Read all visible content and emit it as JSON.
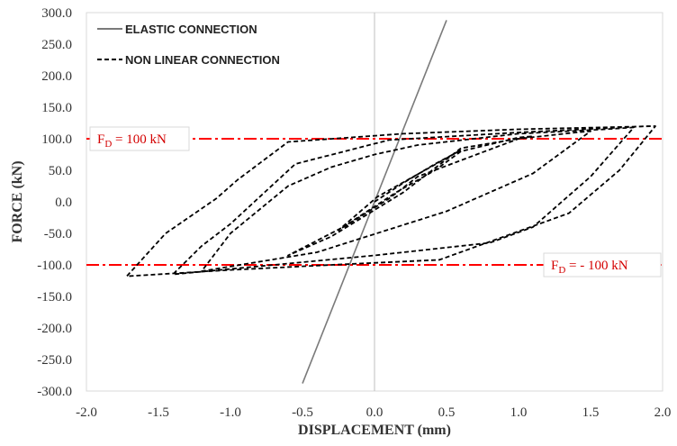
{
  "chart_data": {
    "type": "line",
    "title": "",
    "xlabel": "DISPLACEMENT (mm)",
    "ylabel": "FORCE (kN)",
    "xlim": [
      -2.0,
      2.0
    ],
    "ylim": [
      -300.0,
      300.0
    ],
    "x_ticks": [
      "-2.0",
      "-1.5",
      "-1.0",
      "-0.5",
      "0.0",
      "0.5",
      "1.0",
      "1.5",
      "2.0"
    ],
    "y_ticks": [
      "-300.0",
      "-250.0",
      "-200.0",
      "-150.0",
      "-100.0",
      "-50.0",
      "0.0",
      "50.0",
      "100.0",
      "150.0",
      "200.0",
      "250.0",
      "300.0"
    ],
    "grid": false,
    "legend_position": "top-left",
    "series": [
      {
        "name": "ELASTIC CONNECTION",
        "color": "#7a7a7a",
        "style": "solid",
        "x": [
          -0.5,
          0.5
        ],
        "y": [
          -288,
          288
        ]
      },
      {
        "name": "NON LINEAR CONNECTION",
        "color": "#000000",
        "style": "dashed",
        "x": [
          0.0,
          0.2,
          0.42,
          0.6,
          0.02,
          -0.25,
          0.15,
          0.42,
          0.6,
          1.0,
          1.1,
          0.6,
          0.2,
          -0.3,
          -0.6,
          -0.2,
          0.1,
          0.3,
          1.0,
          1.4,
          1.5,
          1.1,
          0.5,
          -0.4,
          -1.2,
          -1.0,
          -0.6,
          -0.3,
          0.0,
          0.3,
          1.0,
          1.6,
          1.8,
          1.5,
          1.1,
          0.8,
          0.0,
          -0.7,
          -1.4,
          -1.2,
          -1.0,
          -0.55,
          0.1,
          1.0,
          1.9,
          1.95,
          1.7,
          1.35,
          0.45,
          -0.3,
          -1.0,
          -1.72,
          -1.45,
          -1.1,
          -0.95,
          -0.6,
          0.2,
          1.0,
          1.95
        ],
        "y": [
          0,
          30,
          60,
          82,
          8,
          -45,
          15,
          50,
          80,
          102,
          104,
          85,
          15,
          -55,
          -85,
          -38,
          5,
          40,
          100,
          110,
          112,
          45,
          -15,
          -80,
          -110,
          -50,
          25,
          55,
          75,
          90,
          108,
          115,
          118,
          40,
          -40,
          -65,
          -85,
          -100,
          -115,
          -70,
          -35,
          60,
          98,
          110,
          120,
          120,
          50,
          -18,
          -92,
          -100,
          -108,
          -118,
          -50,
          5,
          35,
          95,
          108,
          115,
          120
        ]
      }
    ],
    "reference_lines": [
      {
        "label": "F",
        "sub": "D",
        "value_text": " = 100 kN",
        "y": 100,
        "color": "#ff0000"
      },
      {
        "label": "F",
        "sub": "D",
        "value_text": " = - 100 kN",
        "y": -100,
        "color": "#ff0000"
      }
    ]
  },
  "legend": {
    "elastic_label": "ELASTIC CONNECTION",
    "nonlinear_label": "NON LINEAR CONNECTION"
  }
}
